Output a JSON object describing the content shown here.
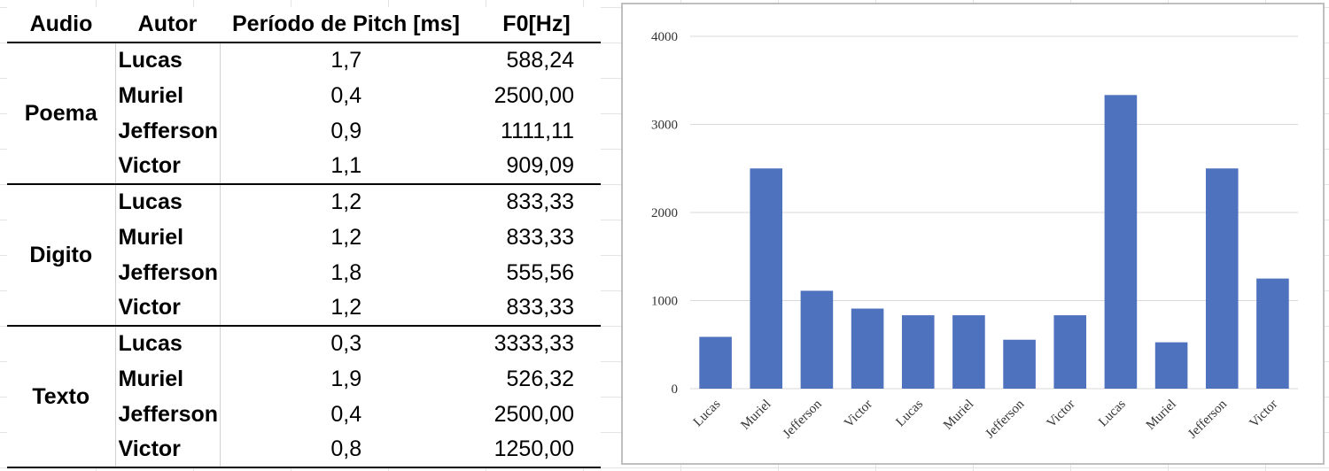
{
  "table": {
    "headers": [
      "Audio",
      "Autor",
      "Período de Pitch [ms]",
      "F0[Hz]"
    ],
    "groups": [
      {
        "audio": "Poema",
        "rows": [
          {
            "autor": "Lucas",
            "periodo": "1,7",
            "f0": "588,24"
          },
          {
            "autor": "Muriel",
            "periodo": "0,4",
            "f0": "2500,00"
          },
          {
            "autor": "Jefferson",
            "periodo": "0,9",
            "f0": "1111,11"
          },
          {
            "autor": "Victor",
            "periodo": "1,1",
            "f0": "909,09"
          }
        ]
      },
      {
        "audio": "Digito",
        "rows": [
          {
            "autor": "Lucas",
            "periodo": "1,2",
            "f0": "833,33"
          },
          {
            "autor": "Muriel",
            "periodo": "1,2",
            "f0": "833,33"
          },
          {
            "autor": "Jefferson",
            "periodo": "1,8",
            "f0": "555,56"
          },
          {
            "autor": "Victor",
            "periodo": "1,2",
            "f0": "833,33"
          }
        ]
      },
      {
        "audio": "Texto",
        "rows": [
          {
            "autor": "Lucas",
            "periodo": "0,3",
            "f0": "3333,33"
          },
          {
            "autor": "Muriel",
            "periodo": "1,9",
            "f0": "526,32"
          },
          {
            "autor": "Jefferson",
            "periodo": "0,4",
            "f0": "2500,00"
          },
          {
            "autor": "Victor",
            "periodo": "0,8",
            "f0": "1250,00"
          }
        ]
      }
    ]
  },
  "chart_data": {
    "type": "bar",
    "categories": [
      "Lucas",
      "Muriel",
      "Jefferson",
      "Victor",
      "Lucas",
      "Muriel",
      "Jefferson",
      "Victor",
      "Lucas",
      "Muriel",
      "Jefferson",
      "Victor"
    ],
    "values": [
      588.24,
      2500.0,
      1111.11,
      909.09,
      833.33,
      833.33,
      555.56,
      833.33,
      3333.33,
      526.32,
      2500.0,
      1250.0
    ],
    "yticks": [
      0,
      1000,
      2000,
      3000,
      4000
    ],
    "ylim": [
      0,
      4000
    ],
    "grid": true,
    "bar_color": "#4f72be",
    "grid_color": "#d9d9d9"
  }
}
